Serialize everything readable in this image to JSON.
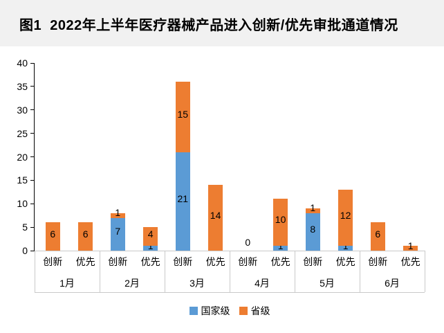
{
  "title": "图1  2022年上半年医疗器械产品进入创新/优先审批通道情况",
  "colors": {
    "national_series": "#5B9BD5",
    "provincial_series": "#ED7D31",
    "title_band_bg": "#F1F1F1",
    "axis_line": "#000000",
    "category_lines": "#C9C9C9"
  },
  "legend": {
    "items": [
      {
        "label": "国家级",
        "color": "#5B9BD5",
        "key": "national"
      },
      {
        "label": "省级",
        "color": "#ED7D31",
        "key": "provincial"
      }
    ]
  },
  "chart_data": {
    "type": "bar",
    "stacked": true,
    "title": "图1  2022年上半年医疗器械产品进入创新/优先审批通道情况",
    "ylabel": "",
    "xlabel": "",
    "ylim": [
      0,
      40
    ],
    "ytick_step": 5,
    "grid": false,
    "legend_position": "bottom",
    "series": [
      {
        "name": "国家级",
        "key": "national",
        "color": "#5B9BD5"
      },
      {
        "name": "省级",
        "key": "provincial",
        "color": "#ED7D31"
      }
    ],
    "groups": [
      {
        "month": "1月",
        "bars": [
          {
            "category": "创新",
            "national": 0,
            "provincial": 6,
            "total": 6
          },
          {
            "category": "优先",
            "national": 0,
            "provincial": 6,
            "total": 6
          }
        ]
      },
      {
        "month": "2月",
        "bars": [
          {
            "category": "创新",
            "national": 7,
            "provincial": 1,
            "total": 8
          },
          {
            "category": "优先",
            "national": 1,
            "provincial": 4,
            "total": 5
          }
        ]
      },
      {
        "month": "3月",
        "bars": [
          {
            "category": "创新",
            "national": 21,
            "provincial": 15,
            "total": 36
          },
          {
            "category": "优先",
            "national": 0,
            "provincial": 14,
            "total": 14
          }
        ]
      },
      {
        "month": "4月",
        "bars": [
          {
            "category": "创新",
            "national": 0,
            "provincial": 0,
            "total": 0
          },
          {
            "category": "优先",
            "national": 1,
            "provincial": 10,
            "total": 11
          }
        ]
      },
      {
        "month": "5月",
        "bars": [
          {
            "category": "创新",
            "national": 8,
            "provincial": 1,
            "total": 9
          },
          {
            "category": "优先",
            "national": 1,
            "provincial": 12,
            "total": 13
          }
        ]
      },
      {
        "month": "6月",
        "bars": [
          {
            "category": "创新",
            "national": 0,
            "provincial": 6,
            "total": 6
          },
          {
            "category": "优先",
            "national": 0,
            "provincial": 1,
            "total": 1
          }
        ]
      }
    ]
  }
}
